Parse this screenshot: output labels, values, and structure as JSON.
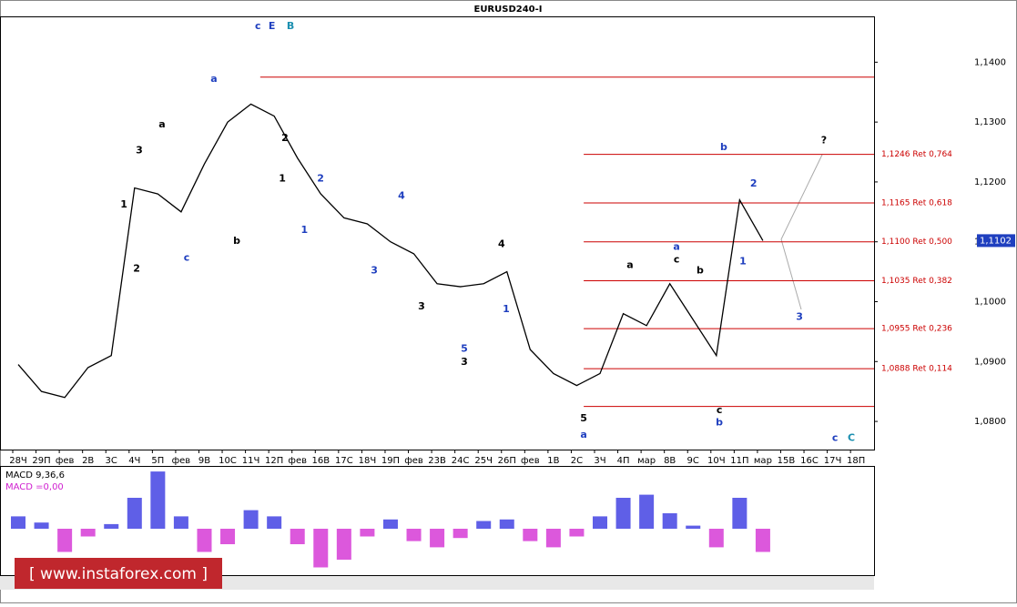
{
  "chart_data": [
    {
      "type": "price",
      "title": "EURUSD240-I",
      "categories": [
        "28Ч",
        "29П",
        "фев",
        "2В",
        "3С",
        "4Ч",
        "5П",
        "фев",
        "9В",
        "10С",
        "11Ч",
        "12П",
        "фев",
        "16В",
        "17С",
        "18Ч",
        "19П",
        "фев",
        "23В",
        "24С",
        "25Ч",
        "26П",
        "фев",
        "1В",
        "2С",
        "3Ч",
        "4П",
        "мар",
        "8В",
        "9С",
        "10Ч",
        "11П",
        "мар",
        "15В",
        "16С",
        "17Ч",
        "18П"
      ],
      "series": [
        {
          "name": "EURUSD",
          "color": "#000000",
          "values": [
            1.0895,
            1.085,
            1.084,
            1.089,
            1.091,
            1.119,
            1.118,
            1.115,
            1.123,
            1.13,
            1.133,
            1.131,
            1.124,
            1.118,
            1.114,
            1.113,
            1.11,
            1.108,
            1.103,
            1.1025,
            1.103,
            1.105,
            1.092,
            1.088,
            1.086,
            1.088,
            1.098,
            1.096,
            1.103,
            1.097,
            1.091,
            1.117,
            1.1102,
            null,
            null,
            null,
            null
          ]
        }
      ],
      "ylim": [
        1.0753,
        1.1475
      ],
      "yticks": [
        {
          "value": 1.08,
          "label": "1,0800"
        },
        {
          "value": 1.09,
          "label": "1,0900"
        },
        {
          "value": 1.1,
          "label": "1,1000"
        },
        {
          "value": 1.11,
          "label": "1,1100"
        },
        {
          "value": 1.12,
          "label": "1,1200"
        },
        {
          "value": 1.13,
          "label": "1,1300"
        },
        {
          "value": 1.14,
          "label": "1,1400"
        }
      ],
      "current_price": {
        "value": 1.1102,
        "label": "1,1102"
      },
      "levels": [
        {
          "value": 1.1375,
          "from": 10.4
        },
        {
          "value": 1.1246,
          "label": "1,1246 Ret 0,764",
          "from": 24.3
        },
        {
          "value": 1.1165,
          "label": "1,1165 Ret 0,618",
          "from": 24.3
        },
        {
          "value": 1.11,
          "label": "1,1100 Ret 0,500",
          "from": 24.3
        },
        {
          "value": 1.1035,
          "label": "1,1035 Ret 0,382",
          "from": 24.3
        },
        {
          "value": 1.0955,
          "label": "1,0955 Ret 0,236",
          "from": 24.3
        },
        {
          "value": 1.0888,
          "label": "1,0888 Ret 0,114",
          "from": 24.3
        },
        {
          "value": 1.0825,
          "from": 24.3
        }
      ],
      "level_color": "#cc0000",
      "annotations": [
        {
          "text": "c",
          "x": 10.3,
          "y": 1.146,
          "color": "#1f3fbf"
        },
        {
          "text": "E",
          "x": 10.9,
          "y": 1.146,
          "color": "#1f3fbf"
        },
        {
          "text": "B",
          "x": 11.7,
          "y": 1.146,
          "color": "#1b8fb0"
        },
        {
          "text": "a",
          "x": 6.18,
          "y": 1.1296,
          "color": "#000000"
        },
        {
          "text": "a",
          "x": 8.41,
          "y": 1.1372,
          "color": "#1f3fbf"
        },
        {
          "text": "b",
          "x": 9.39,
          "y": 1.1101,
          "color": "#000000"
        },
        {
          "text": "1",
          "x": 4.54,
          "y": 1.1162,
          "color": "#000000"
        },
        {
          "text": "2",
          "x": 5.09,
          "y": 1.1055,
          "color": "#000000"
        },
        {
          "text": "3",
          "x": 5.2,
          "y": 1.1252,
          "color": "#000000"
        },
        {
          "text": "c",
          "x": 7.24,
          "y": 1.1073,
          "color": "#1f3fbf"
        },
        {
          "text": "2",
          "x": 11.46,
          "y": 1.1273,
          "color": "#000000"
        },
        {
          "text": "1",
          "x": 11.35,
          "y": 1.1205,
          "color": "#000000"
        },
        {
          "text": "1",
          "x": 12.3,
          "y": 1.1119,
          "color": "#1f3fbf"
        },
        {
          "text": "2",
          "x": 12.99,
          "y": 1.1205,
          "color": "#1f3fbf"
        },
        {
          "text": "4",
          "x": 16.47,
          "y": 1.1176,
          "color": "#1f3fbf"
        },
        {
          "text": "3",
          "x": 15.3,
          "y": 1.1052,
          "color": "#1f3fbf"
        },
        {
          "text": "3",
          "x": 17.33,
          "y": 1.0992,
          "color": "#000000"
        },
        {
          "text": "4",
          "x": 20.77,
          "y": 1.1096,
          "color": "#000000"
        },
        {
          "text": "5",
          "x": 19.17,
          "y": 1.0921,
          "color": "#1f3fbf"
        },
        {
          "text": "3",
          "x": 19.17,
          "y": 1.0899,
          "color": "#000000"
        },
        {
          "text": "1",
          "x": 20.97,
          "y": 1.0987,
          "color": "#1f3fbf"
        },
        {
          "text": "5",
          "x": 24.3,
          "y": 1.0805,
          "color": "#000000"
        },
        {
          "text": "a",
          "x": 24.3,
          "y": 1.0777,
          "color": "#1f3fbf"
        },
        {
          "text": "a",
          "x": 26.29,
          "y": 1.1061,
          "color": "#000000"
        },
        {
          "text": "a",
          "x": 28.29,
          "y": 1.1091,
          "color": "#1f3fbf"
        },
        {
          "text": "c",
          "x": 28.29,
          "y": 1.107,
          "color": "#000000"
        },
        {
          "text": "b",
          "x": 29.3,
          "y": 1.1052,
          "color": "#000000"
        },
        {
          "text": "c",
          "x": 30.13,
          "y": 1.0818,
          "color": "#000000"
        },
        {
          "text": "b",
          "x": 30.13,
          "y": 1.0798,
          "color": "#1f3fbf"
        },
        {
          "text": "b",
          "x": 30.32,
          "y": 1.1258,
          "color": "#1f3fbf"
        },
        {
          "text": "2",
          "x": 31.6,
          "y": 1.1197,
          "color": "#1f3fbf"
        },
        {
          "text": "1",
          "x": 31.14,
          "y": 1.1067,
          "color": "#1f3fbf"
        },
        {
          "text": "3",
          "x": 33.57,
          "y": 1.0974,
          "color": "#1f3fbf"
        },
        {
          "text": "?",
          "x": 34.62,
          "y": 1.1269,
          "color": "#000000"
        },
        {
          "text": "c",
          "x": 35.1,
          "y": 1.0772,
          "color": "#1f3fbf"
        },
        {
          "text": "C",
          "x": 35.8,
          "y": 1.0772,
          "color": "#1b8fb0"
        }
      ]
    },
    {
      "type": "histogram-macd",
      "title": "MACD 9,36,6",
      "subtitle": "MACD =0,00",
      "values": [
        0.0008,
        0.0004,
        -0.0015,
        -0.0005,
        0.0003,
        0.002,
        0.0037,
        0.0008,
        -0.0015,
        -0.001,
        0.0012,
        0.0008,
        -0.001,
        -0.0025,
        -0.002,
        -0.0005,
        0.0006,
        -0.0008,
        -0.0012,
        -0.0006,
        0.0005,
        0.0006,
        -0.0008,
        -0.0012,
        -0.0005,
        0.0008,
        0.002,
        0.0022,
        0.001,
        0.0002,
        -0.0012,
        0.002,
        -0.0015
      ],
      "ylim": [
        -0.003,
        0.004
      ],
      "positive_color": "#2a2adf",
      "negative_color": "#d020d0"
    }
  ],
  "watermark": "[ www.instaforex.com ]"
}
